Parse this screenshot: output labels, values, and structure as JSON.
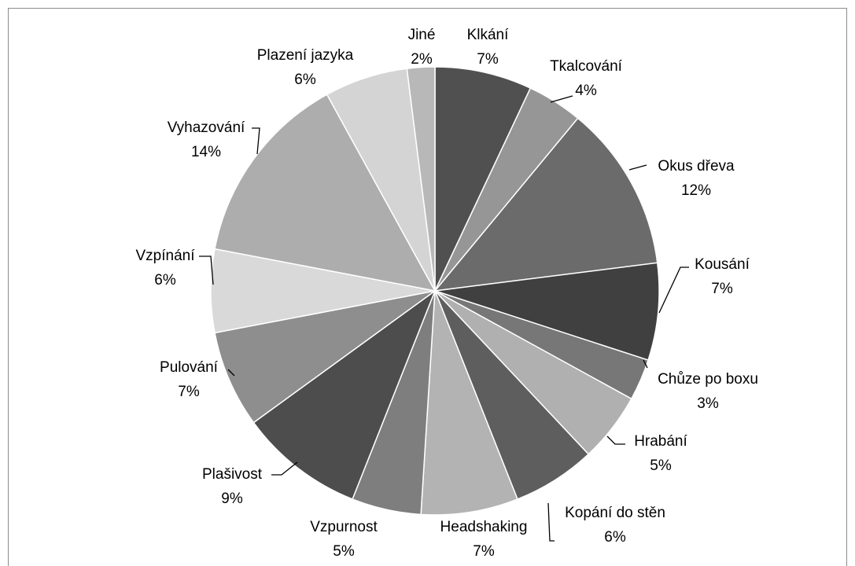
{
  "chart_data": {
    "type": "pie",
    "categories": [
      "Klkání",
      "Tkalcování",
      "Okus dřeva",
      "Kousání",
      "Chůze po boxu",
      "Hrabání",
      "Kopání do stěn",
      "Headshaking",
      "Vzpurnost",
      "Plašivost",
      "Pulování",
      "Vzpínání",
      "Vyhazování",
      "Plazení jazyka",
      "Jiné"
    ],
    "values": [
      7,
      4,
      12,
      7,
      3,
      5,
      6,
      7,
      5,
      9,
      7,
      6,
      14,
      6,
      2
    ],
    "value_labels": [
      "7%",
      "4%",
      "12%",
      "7%",
      "3%",
      "5%",
      "6%",
      "7%",
      "5%",
      "9%",
      "7%",
      "6%",
      "14%",
      "6%",
      "2%"
    ],
    "colors": [
      "#505050",
      "#969696",
      "#6b6b6b",
      "#404040",
      "#777777",
      "#b0b0b0",
      "#5e5e5e",
      "#b3b3b3",
      "#7e7e7e",
      "#4d4d4d",
      "#8e8e8e",
      "#d9d9d9",
      "#adadad",
      "#d4d4d4",
      "#b8b8b8"
    ]
  }
}
